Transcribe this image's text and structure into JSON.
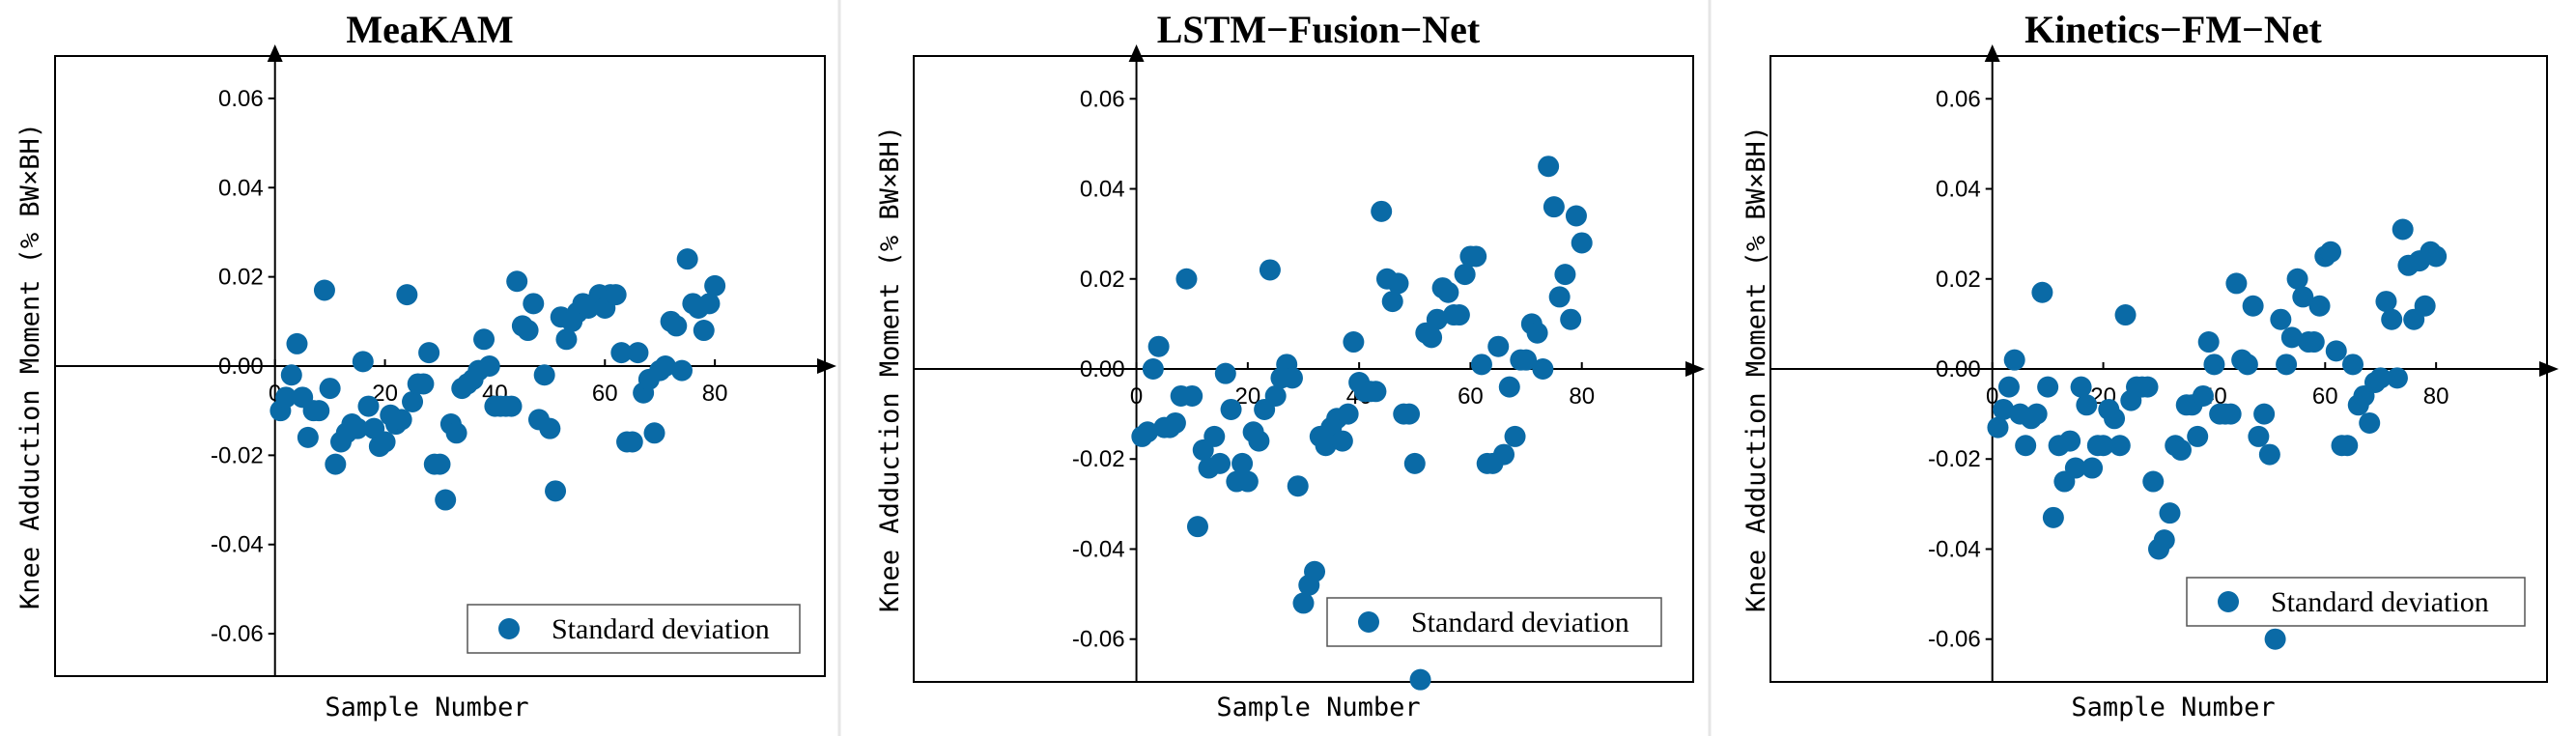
{
  "colors": {
    "marker": "#0a6aa6",
    "axis": "#000000",
    "divider": "#e6e6e6"
  },
  "chart_data": [
    {
      "type": "scatter",
      "title": "MeaKAM",
      "xlabel": "Sample Number",
      "ylabel": "Knee Adduction Moment (% BW×BH)",
      "xlim": [
        -40,
        100
      ],
      "ylim": [
        -0.0695,
        0.0695
      ],
      "xticks": [
        0,
        20,
        40,
        60,
        80
      ],
      "xtick_labels": [
        "0",
        "20",
        "40",
        "60",
        "80"
      ],
      "yticks": [
        0.06,
        0.04,
        0.02,
        0.0,
        -0.02,
        -0.04,
        -0.06
      ],
      "ytick_labels": [
        "0.06",
        "0.04",
        "0.02",
        "0.00",
        "-0.02",
        "-0.04",
        "-0.06"
      ],
      "legend": "Standard deviation",
      "legend_position": "bottom-right",
      "series": [
        {
          "name": "Standard deviation",
          "x": [
            1,
            2,
            3,
            4,
            5,
            6,
            7,
            8,
            9,
            10,
            11,
            12,
            13,
            14,
            15,
            16,
            17,
            18,
            19,
            20,
            21,
            22,
            23,
            24,
            25,
            26,
            27,
            28,
            29,
            30,
            31,
            32,
            33,
            34,
            35,
            36,
            37,
            38,
            39,
            40,
            41,
            42,
            43,
            44,
            45,
            46,
            47,
            48,
            49,
            50,
            51,
            52,
            53,
            54,
            55,
            56,
            57,
            58,
            59,
            60,
            61,
            62,
            63,
            64,
            65,
            66,
            67,
            68,
            69,
            70,
            71,
            72,
            73,
            74,
            75,
            76,
            77,
            78,
            79,
            80
          ],
          "y": [
            -0.01,
            -0.007,
            -0.002,
            0.005,
            -0.007,
            -0.016,
            -0.01,
            -0.01,
            0.017,
            -0.005,
            -0.022,
            -0.017,
            -0.015,
            -0.013,
            -0.014,
            0.001,
            -0.009,
            -0.014,
            -0.018,
            -0.017,
            -0.011,
            -0.013,
            -0.012,
            0.016,
            -0.008,
            -0.004,
            -0.004,
            0.003,
            -0.022,
            -0.022,
            -0.03,
            -0.013,
            -0.015,
            -0.005,
            -0.004,
            -0.003,
            -0.001,
            0.006,
            0.0,
            -0.009,
            -0.009,
            -0.009,
            -0.009,
            0.019,
            0.009,
            0.008,
            0.014,
            -0.012,
            -0.002,
            -0.014,
            -0.028,
            0.011,
            0.006,
            0.01,
            0.012,
            0.014,
            0.013,
            0.014,
            0.016,
            0.013,
            0.016,
            0.016,
            0.003,
            -0.017,
            -0.017,
            0.003,
            -0.006,
            -0.003,
            -0.015,
            -0.001,
            0.0,
            0.01,
            0.009,
            -0.001,
            0.024,
            0.014,
            0.013,
            0.008,
            0.014,
            0.018
          ]
        }
      ]
    },
    {
      "type": "scatter",
      "title": "LSTM−Fusion−Net",
      "xlabel": "Sample Number",
      "ylabel": "Knee Adduction Moment (% BW×BH)",
      "xlim": [
        -40,
        100
      ],
      "ylim": [
        -0.0695,
        0.0695
      ],
      "xticks": [
        0,
        20,
        40,
        60,
        80
      ],
      "xtick_labels": [
        "0",
        "20",
        "40",
        "60",
        "80"
      ],
      "yticks": [
        0.06,
        0.04,
        0.02,
        0.0,
        -0.02,
        -0.04,
        -0.06
      ],
      "ytick_labels": [
        "0.06",
        "0.04",
        "0.02",
        "0.00",
        "-0.02",
        "-0.04",
        "-0.06"
      ],
      "legend": "Standard deviation",
      "legend_position": "bottom-right",
      "series": [
        {
          "name": "Standard deviation",
          "x": [
            1,
            2,
            3,
            4,
            5,
            6,
            7,
            8,
            9,
            10,
            11,
            12,
            13,
            14,
            15,
            16,
            17,
            18,
            19,
            20,
            21,
            22,
            23,
            24,
            25,
            26,
            27,
            28,
            29,
            30,
            31,
            32,
            33,
            34,
            35,
            36,
            37,
            38,
            39,
            40,
            41,
            42,
            43,
            44,
            45,
            46,
            47,
            48,
            49,
            50,
            51,
            52,
            53,
            54,
            55,
            56,
            57,
            58,
            59,
            60,
            61,
            62,
            63,
            64,
            65,
            66,
            67,
            68,
            69,
            70,
            71,
            72,
            73,
            74,
            75,
            76,
            77,
            78,
            79,
            80
          ],
          "y": [
            -0.015,
            -0.014,
            0.0,
            0.005,
            -0.013,
            -0.013,
            -0.012,
            -0.006,
            0.02,
            -0.006,
            -0.035,
            -0.018,
            -0.022,
            -0.015,
            -0.021,
            -0.001,
            -0.009,
            -0.025,
            -0.021,
            -0.025,
            -0.014,
            -0.016,
            -0.009,
            0.022,
            -0.006,
            -0.002,
            0.001,
            -0.002,
            -0.026,
            -0.052,
            -0.048,
            -0.045,
            -0.015,
            -0.017,
            -0.013,
            -0.011,
            -0.016,
            -0.01,
            0.006,
            -0.003,
            -0.005,
            -0.005,
            -0.005,
            0.035,
            0.02,
            0.015,
            0.019,
            -0.01,
            -0.01,
            -0.021,
            -0.069,
            0.008,
            0.007,
            0.011,
            0.018,
            0.017,
            0.012,
            0.012,
            0.021,
            0.025,
            0.025,
            0.001,
            -0.021,
            -0.021,
            0.005,
            -0.019,
            -0.004,
            -0.015,
            0.002,
            0.002,
            0.01,
            0.008,
            0.0,
            0.045,
            0.036,
            0.016,
            0.021,
            0.011,
            0.034,
            0.028
          ]
        }
      ]
    },
    {
      "type": "scatter",
      "title": "Kinetics−FM−Net",
      "xlabel": "Sample Number",
      "ylabel": "Knee Adduction Moment (% BW×BH)",
      "xlim": [
        -40,
        100
      ],
      "ylim": [
        -0.0695,
        0.0695
      ],
      "xticks": [
        0,
        20,
        40,
        60,
        80
      ],
      "xtick_labels": [
        "0",
        "20",
        "40",
        "60",
        "80"
      ],
      "yticks": [
        0.06,
        0.04,
        0.02,
        0.0,
        -0.02,
        -0.04,
        -0.06
      ],
      "ytick_labels": [
        "0.06",
        "0.04",
        "0.02",
        "0.00",
        "-0.02",
        "-0.04",
        "-0.06"
      ],
      "legend": "Standard deviation",
      "legend_position": "bottom-right",
      "series": [
        {
          "name": "Standard deviation",
          "x": [
            1,
            2,
            3,
            4,
            5,
            6,
            7,
            8,
            9,
            10,
            11,
            12,
            13,
            14,
            15,
            16,
            17,
            18,
            19,
            20,
            21,
            22,
            23,
            24,
            25,
            26,
            27,
            28,
            29,
            30,
            31,
            32,
            33,
            34,
            35,
            36,
            37,
            38,
            39,
            40,
            41,
            42,
            43,
            44,
            45,
            46,
            47,
            48,
            49,
            50,
            51,
            52,
            53,
            54,
            55,
            56,
            57,
            58,
            59,
            60,
            61,
            62,
            63,
            64,
            65,
            66,
            67,
            68,
            69,
            70,
            71,
            72,
            73,
            74,
            75,
            76,
            77,
            78,
            79,
            80
          ],
          "y": [
            -0.013,
            -0.009,
            -0.004,
            0.002,
            -0.01,
            -0.017,
            -0.011,
            -0.01,
            0.017,
            -0.004,
            -0.033,
            -0.017,
            -0.025,
            -0.016,
            -0.022,
            -0.004,
            -0.008,
            -0.022,
            -0.017,
            -0.017,
            -0.009,
            -0.011,
            -0.017,
            0.012,
            -0.007,
            -0.004,
            -0.004,
            -0.004,
            -0.025,
            -0.04,
            -0.038,
            -0.032,
            -0.017,
            -0.018,
            -0.008,
            -0.008,
            -0.015,
            -0.006,
            0.006,
            0.001,
            -0.01,
            -0.01,
            -0.01,
            0.019,
            0.002,
            0.001,
            0.014,
            -0.015,
            -0.01,
            -0.019,
            -0.06,
            0.011,
            0.001,
            0.007,
            0.02,
            0.016,
            0.006,
            0.006,
            0.014,
            0.025,
            0.026,
            0.004,
            -0.017,
            -0.017,
            0.001,
            -0.008,
            -0.006,
            -0.012,
            -0.003,
            -0.002,
            0.015,
            0.011,
            -0.002,
            0.031,
            0.023,
            0.011,
            0.024,
            0.014,
            0.026,
            0.025
          ]
        }
      ]
    }
  ]
}
